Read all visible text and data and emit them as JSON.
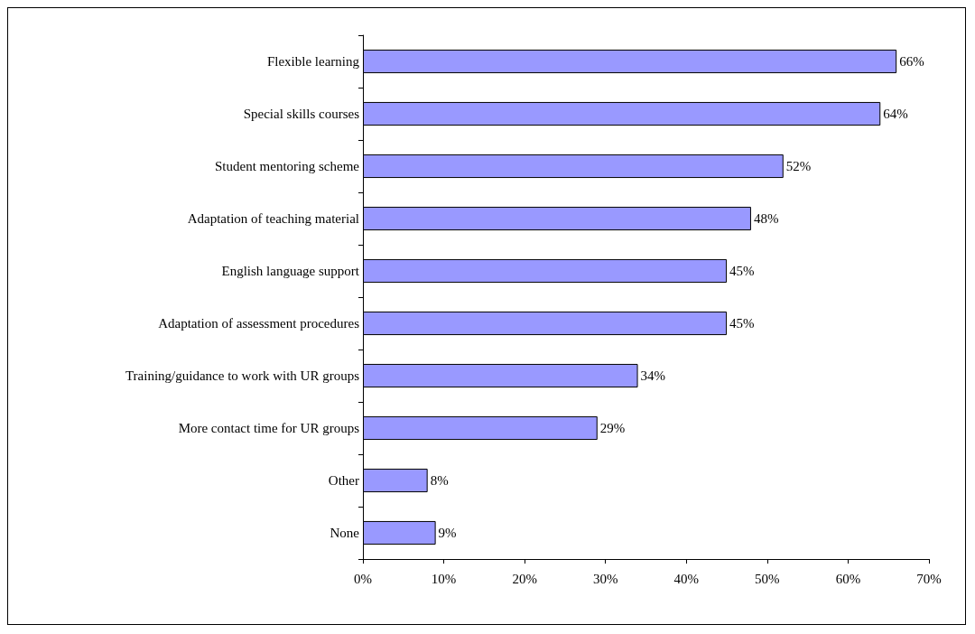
{
  "chart_data": {
    "type": "bar",
    "orientation": "horizontal",
    "categories": [
      "Flexible learning",
      "Special skills courses",
      "Student mentoring scheme",
      "Adaptation of teaching material",
      "English language support",
      "Adaptation of assessment procedures",
      "Training/guidance to work with UR groups",
      "More contact time for UR groups",
      "Other",
      "None"
    ],
    "values": [
      66,
      64,
      52,
      48,
      45,
      45,
      34,
      29,
      8,
      9
    ],
    "value_labels": [
      "66%",
      "64%",
      "52%",
      "48%",
      "45%",
      "45%",
      "34%",
      "29%",
      "8%",
      "9%"
    ],
    "color": "#9999ff",
    "xlim": [
      0,
      70
    ],
    "xticks": [
      {
        "value": 0,
        "label": "0%"
      },
      {
        "value": 10,
        "label": "10%"
      },
      {
        "value": 20,
        "label": "20%"
      },
      {
        "value": 30,
        "label": "30%"
      },
      {
        "value": 40,
        "label": "40%"
      },
      {
        "value": 50,
        "label": "50%"
      },
      {
        "value": 60,
        "label": "60%"
      },
      {
        "value": 70,
        "label": "70%"
      }
    ],
    "grid": false
  }
}
